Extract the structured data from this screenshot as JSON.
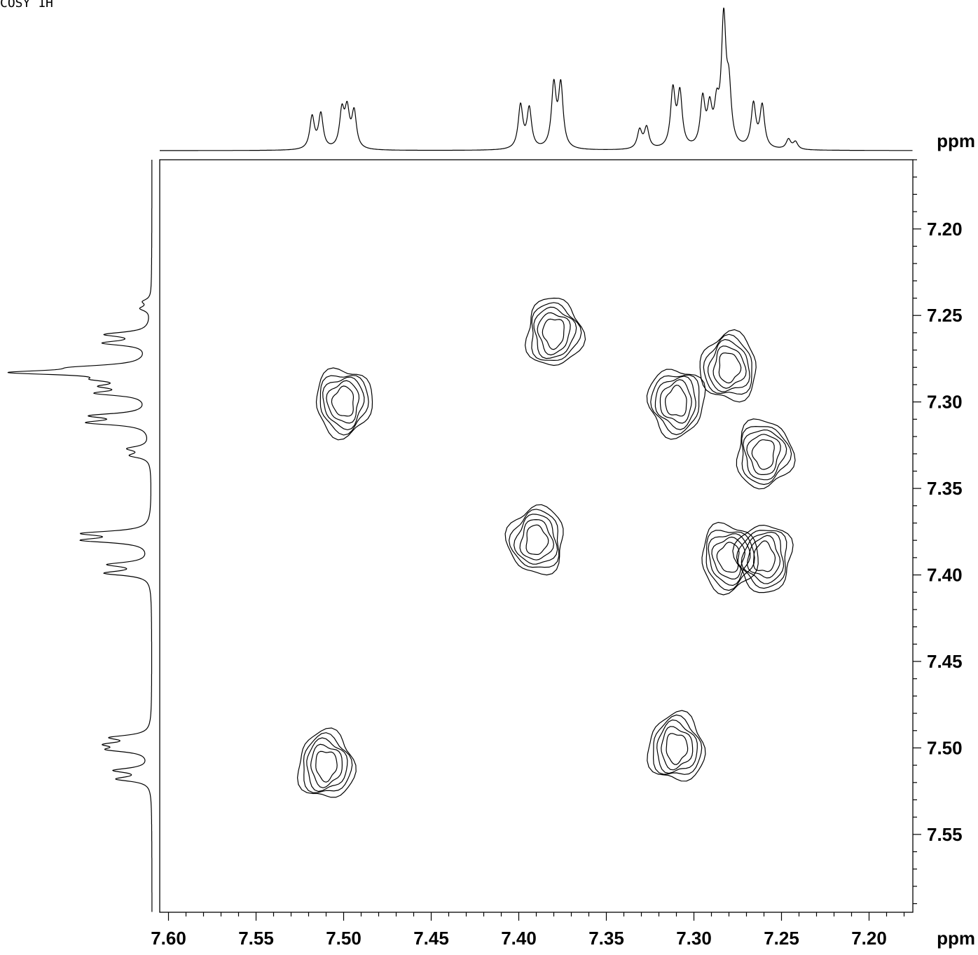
{
  "title": "COSY 1H",
  "chart_data": {
    "type": "contour",
    "subtype": "2D NMR COSY spectrum",
    "title": "COSY 1H",
    "x_axis": {
      "unit_label": "ppm",
      "range": [
        7.605,
        7.175
      ],
      "reversed": true,
      "major_ticks": [
        7.6,
        7.55,
        7.5,
        7.45,
        7.4,
        7.35,
        7.3,
        7.25,
        7.2
      ],
      "tick_labels": [
        "7.60",
        "7.55",
        "7.50",
        "7.45",
        "7.40",
        "7.35",
        "7.30",
        "7.25",
        "7.20"
      ],
      "minor_step": 0.01
    },
    "y_axis": {
      "unit_label": "ppm",
      "range": [
        7.16,
        7.595
      ],
      "major_ticks": [
        7.2,
        7.25,
        7.3,
        7.35,
        7.4,
        7.45,
        7.5,
        7.55
      ],
      "tick_labels": [
        "7.20",
        "7.25",
        "7.30",
        "7.35",
        "7.40",
        "7.45",
        "7.50",
        "7.55"
      ],
      "minor_step": 0.01
    },
    "projection_1d": {
      "peaks": [
        {
          "ppm": 7.518,
          "height": 0.26
        },
        {
          "ppm": 7.513,
          "height": 0.28
        },
        {
          "ppm": 7.501,
          "height": 0.29
        },
        {
          "ppm": 7.498,
          "height": 0.29
        },
        {
          "ppm": 7.494,
          "height": 0.29
        },
        {
          "ppm": 7.399,
          "height": 0.35
        },
        {
          "ppm": 7.394,
          "height": 0.32
        },
        {
          "ppm": 7.38,
          "height": 0.5
        },
        {
          "ppm": 7.376,
          "height": 0.5
        },
        {
          "ppm": 7.331,
          "height": 0.15
        },
        {
          "ppm": 7.327,
          "height": 0.17
        },
        {
          "ppm": 7.312,
          "height": 0.46
        },
        {
          "ppm": 7.308,
          "height": 0.43
        },
        {
          "ppm": 7.295,
          "height": 0.38
        },
        {
          "ppm": 7.291,
          "height": 0.29
        },
        {
          "ppm": 7.287,
          "height": 0.28
        },
        {
          "ppm": 7.283,
          "height": 1.0
        },
        {
          "ppm": 7.28,
          "height": 0.42
        },
        {
          "ppm": 7.266,
          "height": 0.35
        },
        {
          "ppm": 7.261,
          "height": 0.34
        },
        {
          "ppm": 7.246,
          "height": 0.08
        },
        {
          "ppm": 7.242,
          "height": 0.06
        }
      ]
    },
    "cross_peaks": [
      {
        "x": 7.51,
        "y": 7.51,
        "type": "diagonal"
      },
      {
        "x": 7.5,
        "y": 7.3,
        "type": "cross"
      },
      {
        "x": 7.39,
        "y": 7.38,
        "type": "diagonal"
      },
      {
        "x": 7.38,
        "y": 7.26,
        "type": "cross"
      },
      {
        "x": 7.31,
        "y": 7.3,
        "type": "diagonal"
      },
      {
        "x": 7.28,
        "y": 7.28,
        "type": "diagonal"
      },
      {
        "x": 7.26,
        "y": 7.33,
        "type": "cross"
      },
      {
        "x": 7.26,
        "y": 7.39,
        "type": "cross"
      },
      {
        "x": 7.31,
        "y": 7.5,
        "type": "cross"
      },
      {
        "x": 7.28,
        "y": 7.39,
        "type": "cross"
      }
    ],
    "grid": false,
    "legend": "none"
  }
}
